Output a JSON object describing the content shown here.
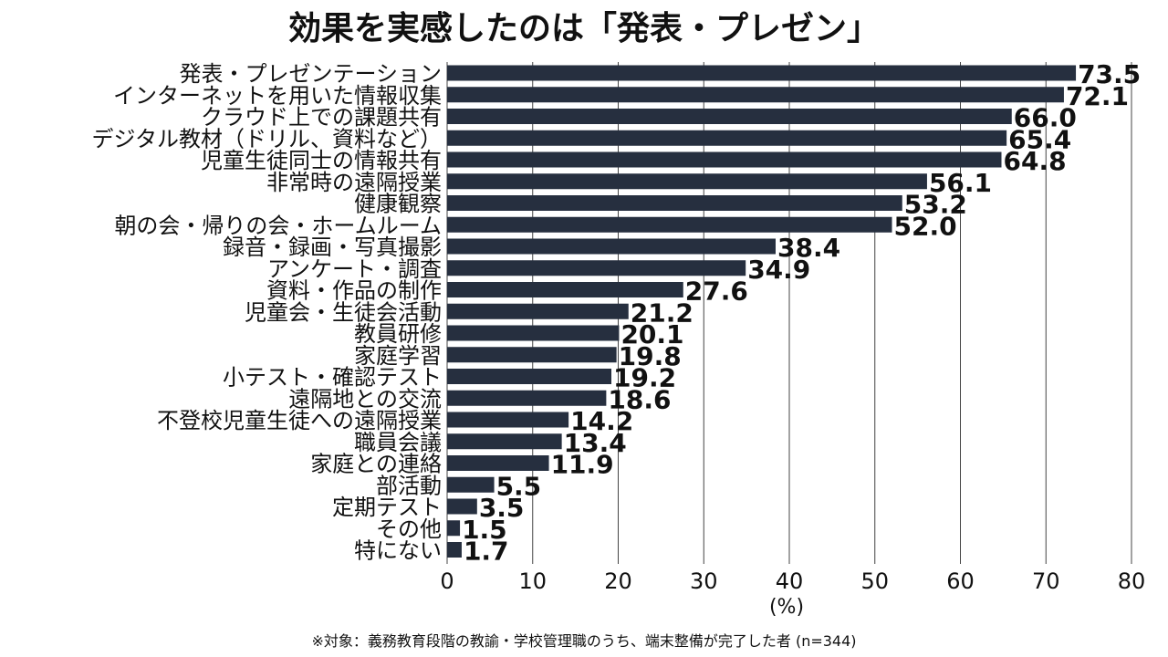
{
  "title": "効果を実感したのは「発表・プレゼン」",
  "footnote": "※対象：義務教育段階の教諭・学校管理職のうち、端末整備が完了した者 (n=344)",
  "colors": {
    "bar": "#262f3f",
    "grid": "#444444",
    "text": "#111111"
  },
  "chart_data": {
    "type": "bar",
    "orientation": "horizontal",
    "categories": [
      "発表・プレゼンテーション",
      "インターネットを用いた情報収集",
      "クラウド上での課題共有",
      "デジタル教材（ドリル、資料など）",
      "児童生徒同士の情報共有",
      "非常時の遠隔授業",
      "健康観察",
      "朝の会・帰りの会・ホームルーム",
      "録音・録画・写真撮影",
      "アンケート・調査",
      "資料・作品の制作",
      "児童会・生徒会活動",
      "教員研修",
      "家庭学習",
      "小テスト・確認テスト",
      "遠隔地との交流",
      "不登校児童生徒への遠隔授業",
      "職員会議",
      "家庭との連絡",
      "部活動",
      "定期テスト",
      "その他",
      "特にない"
    ],
    "values": [
      73.5,
      72.1,
      66.0,
      65.4,
      64.8,
      56.1,
      53.2,
      52.0,
      38.4,
      34.9,
      27.6,
      21.2,
      20.1,
      19.8,
      19.2,
      18.6,
      14.2,
      13.4,
      11.9,
      5.5,
      3.5,
      1.5,
      1.7
    ],
    "value_labels": [
      "73.5",
      "72.1",
      "66.0",
      "65.4",
      "64.8",
      "56.1",
      "53.2",
      "52.0",
      "38.4",
      "34.9",
      "27.6",
      "21.2",
      "20.1",
      "19.8",
      "19.2",
      "18.6",
      "14.2",
      "13.4",
      "11.9",
      "5.5",
      "3.5",
      "1.5",
      "1.7"
    ],
    "xlim": [
      0,
      80
    ],
    "xticks": [
      "0",
      "10",
      "20",
      "30",
      "40",
      "50",
      "60",
      "70",
      "80"
    ],
    "xlabel": "(%)",
    "ylabel": "",
    "grid": "vertical"
  }
}
